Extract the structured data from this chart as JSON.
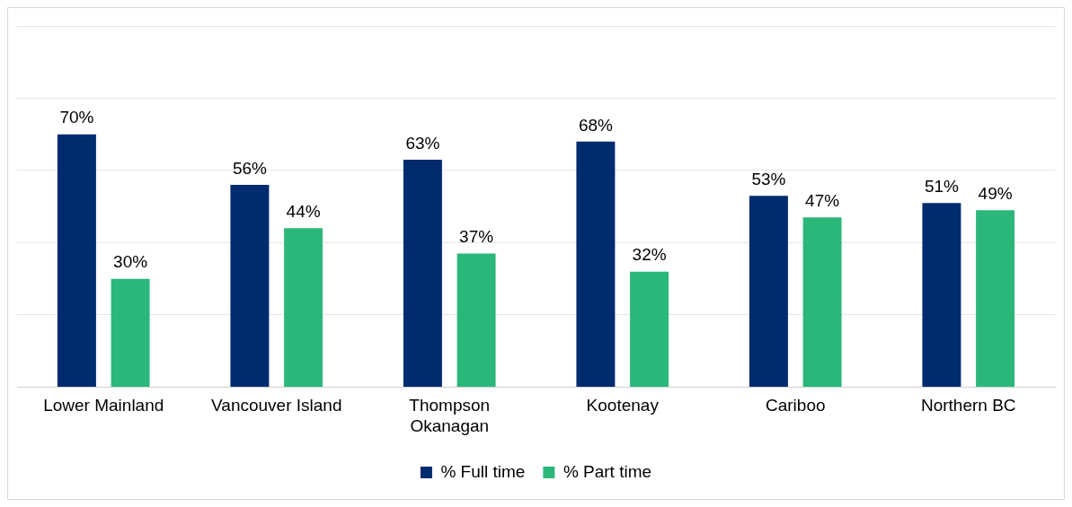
{
  "chart_data": {
    "type": "bar",
    "categories": [
      "Lower Mainland",
      "Vancouver Island",
      "Thompson Okanagan",
      "Kootenay",
      "Cariboo",
      "Northern BC"
    ],
    "series": [
      {
        "name": "% Full time",
        "color": "#002b6e",
        "values": [
          70,
          56,
          63,
          68,
          53,
          51
        ],
        "value_labels": [
          "70%",
          "56%",
          "63%",
          "68%",
          "53%",
          "51%"
        ]
      },
      {
        "name": "% Part time",
        "color": "#2bb77a",
        "values": [
          30,
          44,
          37,
          32,
          47,
          49
        ],
        "value_labels": [
          "30%",
          "44%",
          "37%",
          "32%",
          "47%",
          "49%"
        ]
      }
    ],
    "ylim": [
      0,
      100
    ],
    "yticks": [
      {
        "value": 0,
        "label": null
      },
      {
        "value": 20,
        "label": null
      },
      {
        "value": 40,
        "label": null
      },
      {
        "value": 60,
        "label": null
      },
      {
        "value": 80,
        "label": null
      },
      {
        "value": 100,
        "label": null
      }
    ],
    "tick_labels": "x",
    "grid": "y",
    "legend": "bottom"
  }
}
